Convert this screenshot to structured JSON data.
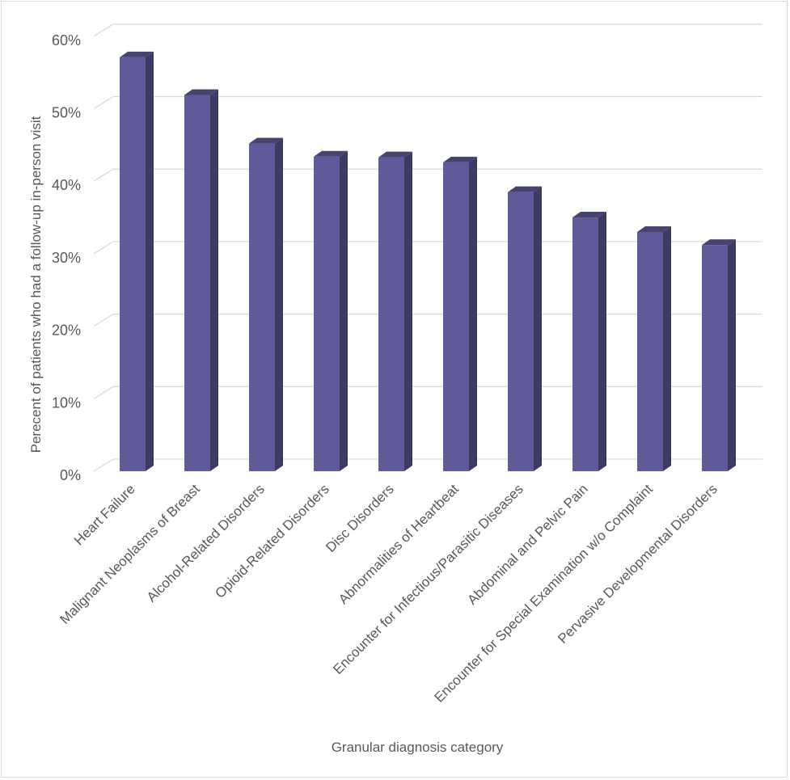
{
  "chart_data": {
    "type": "bar",
    "title": "",
    "xlabel": "Granular diagnosis category",
    "ylabel": "Perecent of patients who had a follow-up in-person visit",
    "ylim": [
      0,
      60
    ],
    "yticks": [
      "0%",
      "10%",
      "20%",
      "30%",
      "40%",
      "50%",
      "60%"
    ],
    "grid": true,
    "legend": "none",
    "bar_color": "#5f5b9a",
    "bar_side_color": "#3e3a66",
    "bar_top_color": "#47436f",
    "categories": [
      "Heart Failure",
      "Malignant Neoplasms of Breast",
      "Alcohol-Related Disorders",
      "Opioid-Related Disorders",
      "Disc Disorders",
      "Abnormalities of Heartbeat",
      "Encounter for Infectious/Parasitic Diseases",
      "Abdominal and Pelvic Pain",
      "Encounter for Special Examination w/o Complaint",
      "Pervasive Developmental Disorders"
    ],
    "values": [
      57.1,
      51.9,
      45.2,
      43.4,
      43.3,
      42.6,
      38.5,
      35.0,
      33.0,
      31.2
    ]
  }
}
